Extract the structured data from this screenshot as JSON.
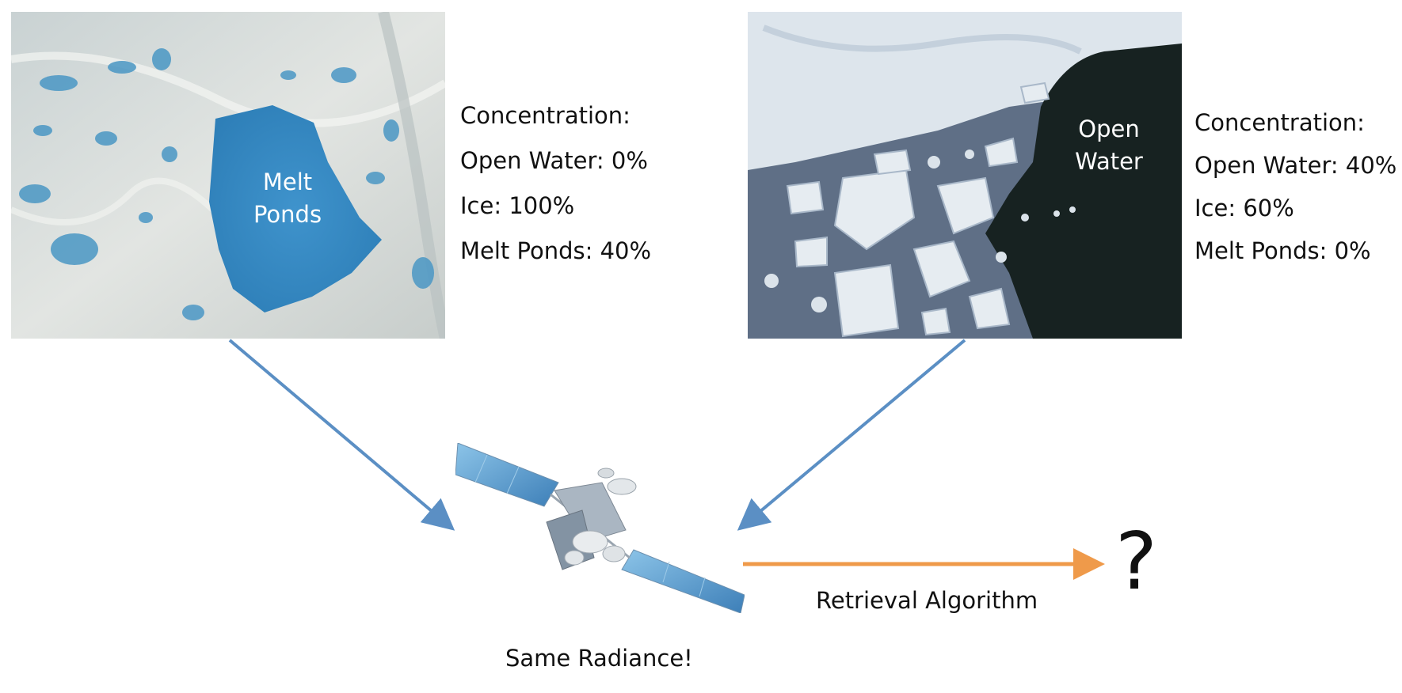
{
  "left_panel": {
    "photo_label": "Melt\nPonds",
    "concentration": {
      "heading": "Concentration:",
      "lines": [
        "Open Water: 0%",
        "Ice: 100%",
        "Melt Ponds: 40%"
      ]
    }
  },
  "right_panel": {
    "photo_label": "Open\nWater",
    "concentration": {
      "heading": "Concentration:",
      "lines": [
        "Open Water: 40%",
        "Ice: 60%",
        "Melt Ponds: 0%"
      ]
    }
  },
  "flow": {
    "arrow_label": "Retrieval Algorithm",
    "result_symbol": "?",
    "satellite_caption": "Same Radiance!"
  },
  "colors": {
    "input_arrows": "#5b8fc4",
    "algorithm_arrow": "#ef9a4a",
    "melt_pond": "#3d8fc8",
    "open_water": "#172221",
    "ice": "#dfe6ea"
  },
  "icons": {
    "satellite": "satellite-icon",
    "arrow": "arrow-icon"
  }
}
